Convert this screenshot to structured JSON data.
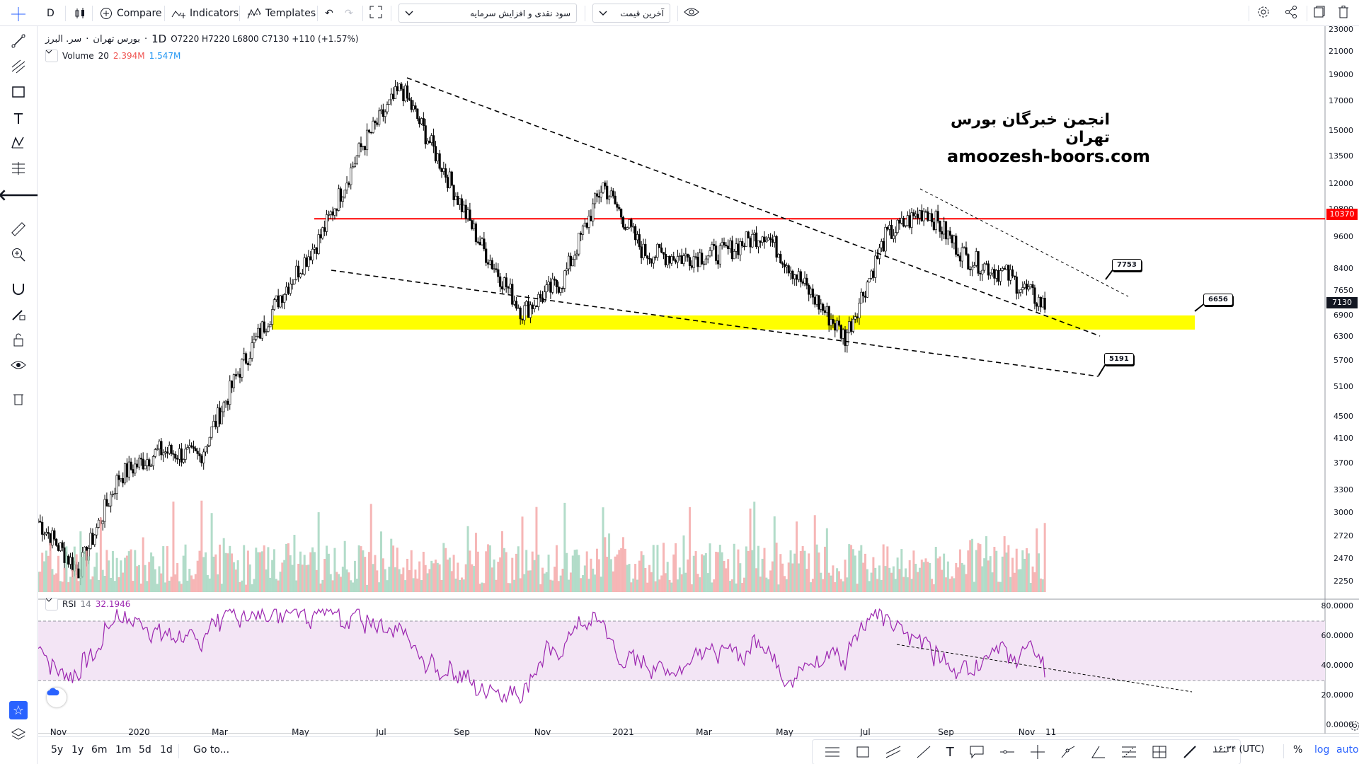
{
  "toolbar": {
    "interval": "D",
    "compare_label": "Compare",
    "indicators_label": "Indicators",
    "templates_label": "Templates",
    "dropdown_1": "سود نقدی و افزایش سرمایه",
    "dropdown_2": "آخرین قیمت"
  },
  "legend": {
    "symbol": "سر. البرز",
    "exchange": "بورس تهران",
    "interval": "1D",
    "open_label": "O",
    "open": "7220",
    "high_label": "H",
    "high": "7220",
    "low_label": "L",
    "low": "6800",
    "close_label": "C",
    "close": "7130",
    "change": "+110 (+1.57%)",
    "volume_label": "Volume",
    "volume_period": "20",
    "volume_value": "2.394M",
    "volume_ma": "1.547M",
    "rsi_label": "RSI",
    "rsi_period": "14",
    "rsi_value": "32.1946"
  },
  "watermark": {
    "line1": "انجمن خبرگان بورس تهران",
    "line2": "amoozesh-boors.com"
  },
  "price_axis": [
    "23000",
    "21000",
    "19000",
    "17000",
    "15000",
    "13500",
    "12000",
    "10800",
    "9600",
    "8400",
    "7650",
    "6900",
    "6300",
    "5700",
    "5100",
    "4500",
    "4100",
    "3700",
    "3300",
    "3000",
    "2720",
    "2470",
    "2250"
  ],
  "rsi_axis": [
    "80.0000",
    "60.0000",
    "40.0000",
    "20.0000",
    "0.0000"
  ],
  "time_axis": [
    "Nov",
    "2020",
    "Mar",
    "May",
    "Jul",
    "Sep",
    "Nov",
    "2021",
    "Mar",
    "May",
    "Jul",
    "Sep",
    "Nov",
    "11"
  ],
  "price_tags": {
    "resistance": "10370",
    "last": "7130"
  },
  "callouts": [
    "7753",
    "6656",
    "5191"
  ],
  "bottom": {
    "ranges": [
      "5y",
      "1y",
      "6m",
      "1m",
      "5d",
      "1d"
    ],
    "goto": "Go to...",
    "clock": "۱۶:۳۴ (UTC)",
    "percent": "%",
    "log": "log",
    "auto": "auto"
  },
  "colors": {
    "up_volume": "#a5d6c0",
    "down_volume": "#f4a9a9",
    "resistance": "#ff0000",
    "support_zone": "#ffff00",
    "rsi_line": "#9c27b0",
    "rsi_band": "#f3e5f5",
    "accent": "#2962ff"
  },
  "chart_data": {
    "type": "candlestick",
    "interval": "1D",
    "ohlc_last": {
      "open": 7220,
      "high": 7220,
      "low": 6800,
      "close": 7130
    },
    "y_scale": "log",
    "ylim": [
      2150,
      23000
    ],
    "x_range": [
      "2019-10",
      "2021-11"
    ],
    "approx_close_path": [
      {
        "x": "2019-10",
        "y": 2900
      },
      {
        "x": "2019-11",
        "y": 2350
      },
      {
        "x": "2019-12",
        "y": 3500
      },
      {
        "x": "2020-01",
        "y": 3900
      },
      {
        "x": "2020-02",
        "y": 3800
      },
      {
        "x": "2020-03",
        "y": 5500
      },
      {
        "x": "2020-04",
        "y": 7500
      },
      {
        "x": "2020-05",
        "y": 9600
      },
      {
        "x": "2020-06",
        "y": 14000
      },
      {
        "x": "2020-07",
        "y": 18000
      },
      {
        "x": "2020-08",
        "y": 13000
      },
      {
        "x": "2020-09",
        "y": 9200
      },
      {
        "x": "2020-10",
        "y": 7000
      },
      {
        "x": "2020-11",
        "y": 8000
      },
      {
        "x": "2020-12",
        "y": 12000
      },
      {
        "x": "2021-01",
        "y": 9000
      },
      {
        "x": "2021-02",
        "y": 8800
      },
      {
        "x": "2021-03",
        "y": 9000
      },
      {
        "x": "2021-04",
        "y": 9800
      },
      {
        "x": "2021-05",
        "y": 7800
      },
      {
        "x": "2021-06",
        "y": 6300
      },
      {
        "x": "2021-07",
        "y": 9600
      },
      {
        "x": "2021-08",
        "y": 10800
      },
      {
        "x": "2021-09",
        "y": 8800
      },
      {
        "x": "2021-10",
        "y": 8200
      },
      {
        "x": "2021-11",
        "y": 7130
      }
    ],
    "horizontal_levels": [
      {
        "value": 10370
      }
    ],
    "support_zone": [
      6500,
      6900
    ],
    "annotations": [
      "7753",
      "6656",
      "5191"
    ],
    "rsi": {
      "period": 14,
      "last": 32.1946,
      "bands": [
        30,
        70
      ],
      "ylim": [
        0,
        80
      ]
    }
  }
}
